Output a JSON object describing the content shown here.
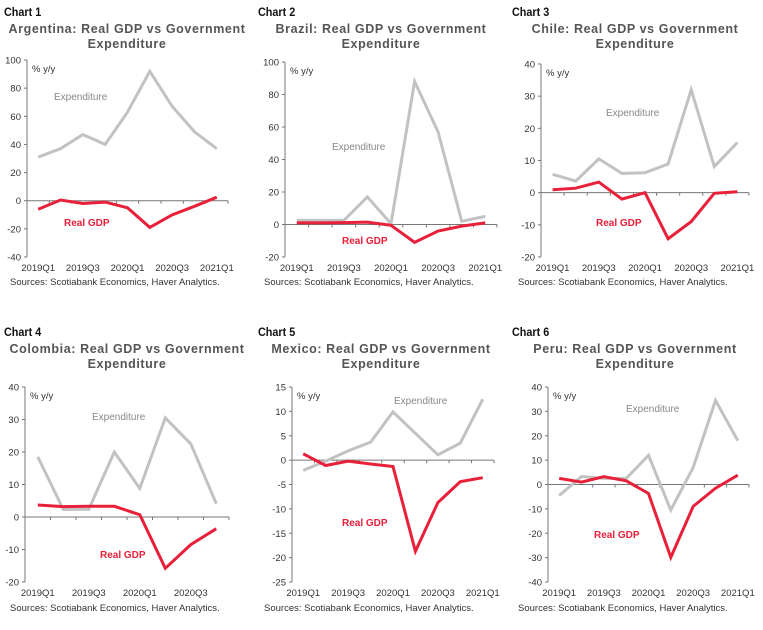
{
  "colors": {
    "gdp": "#e8203a",
    "expenditure": "#c2c2c2",
    "title": "#555555",
    "axis": "#777777"
  },
  "chart_data": [
    {
      "type": "line",
      "chart_label": "Chart 1",
      "title": "Argentina: Real GDP vs Government Expenditure",
      "ylabel": "% y/y",
      "ylim": [
        -40,
        100
      ],
      "yticks": [
        100,
        80,
        60,
        40,
        20,
        0,
        -20,
        -40
      ],
      "categories": [
        "2019Q1",
        "2019Q2",
        "2019Q3",
        "2019Q4",
        "2020Q1",
        "2020Q2",
        "2020Q3",
        "2020Q4",
        "2021Q1"
      ],
      "xtick_labels": [
        "2019Q1",
        "2019Q3",
        "2020Q1",
        "2020Q3",
        "2021Q1"
      ],
      "series": [
        {
          "name": "Expenditure",
          "values": [
            31,
            37,
            47,
            40,
            63,
            92,
            67,
            49,
            37
          ]
        },
        {
          "name": "Real GDP",
          "values": [
            -6,
            0.5,
            -2,
            -1,
            -5,
            -19,
            -10,
            -4,
            2.5
          ]
        }
      ],
      "annotations": [
        {
          "text": "Expenditure",
          "series": "Expenditure"
        },
        {
          "text": "Real GDP",
          "series": "Real GDP"
        }
      ],
      "source": "Sources: Scotiabank Economics, Haver Analytics."
    },
    {
      "type": "line",
      "chart_label": "Chart 2",
      "title": "Brazil: Real GDP vs Government Expenditure",
      "ylabel": "% y/y",
      "ylim": [
        -20,
        100
      ],
      "yticks": [
        100,
        80,
        60,
        40,
        20,
        0,
        -20
      ],
      "categories": [
        "2019Q1",
        "2019Q2",
        "2019Q3",
        "2019Q4",
        "2020Q1",
        "2020Q2",
        "2020Q3",
        "2020Q4",
        "2021Q1"
      ],
      "xtick_labels": [
        "2019Q1",
        "2019Q3",
        "2020Q1",
        "2020Q3",
        "2021Q1"
      ],
      "series": [
        {
          "name": "Expenditure",
          "values": [
            2.5,
            2.5,
            2.5,
            17,
            0.5,
            88,
            57,
            2,
            5
          ]
        },
        {
          "name": "Real GDP",
          "values": [
            1,
            1,
            1.2,
            1.5,
            -0.5,
            -11,
            -4,
            -1,
            1
          ]
        }
      ],
      "annotations": [
        {
          "text": "Expenditure",
          "series": "Expenditure"
        },
        {
          "text": "Real GDP",
          "series": "Real GDP"
        }
      ],
      "source": "Sources: Scotiabank Economics, Haver Analytics."
    },
    {
      "type": "line",
      "chart_label": "Chart 3",
      "title": "Chile: Real GDP vs Government Expenditure",
      "ylabel": "% y/y",
      "ylim": [
        -20,
        40
      ],
      "yticks": [
        40,
        30,
        20,
        10,
        0,
        -10,
        -20
      ],
      "categories": [
        "2019Q1",
        "2019Q2",
        "2019Q3",
        "2019Q4",
        "2020Q1",
        "2020Q2",
        "2020Q3",
        "2020Q4",
        "2021Q1"
      ],
      "xtick_labels": [
        "2019Q1",
        "2019Q3",
        "2020Q1",
        "2020Q3",
        "2021Q1"
      ],
      "series": [
        {
          "name": "Expenditure",
          "values": [
            5.7,
            3.6,
            10.5,
            6,
            6.2,
            8.9,
            32,
            8.1,
            15.6
          ]
        },
        {
          "name": "Real GDP",
          "values": [
            0.9,
            1.4,
            3.3,
            -2,
            0,
            -14.3,
            -9,
            -0.2,
            0.3
          ]
        }
      ],
      "annotations": [
        {
          "text": "Expenditure",
          "series": "Expenditure"
        },
        {
          "text": "Real GDP",
          "series": "Real GDP"
        }
      ],
      "source": "Sources: Scotiabank Economics, Haver Analytics."
    },
    {
      "type": "line",
      "chart_label": "Chart 4",
      "title": "Colombia: Real GDP vs Government Expenditure",
      "ylabel": "% y/y",
      "ylim": [
        -20,
        40
      ],
      "yticks": [
        40,
        30,
        20,
        10,
        0,
        -10,
        -20
      ],
      "categories": [
        "2019Q1",
        "2019Q2",
        "2019Q3",
        "2019Q4",
        "2020Q1",
        "2020Q2",
        "2020Q3",
        "2020Q4"
      ],
      "xtick_labels": [
        "2019Q1",
        "2019Q3",
        "2020Q1",
        "2020Q3"
      ],
      "series": [
        {
          "name": "Expenditure",
          "values": [
            18.5,
            2.3,
            2.4,
            20,
            8.8,
            30.5,
            22.5,
            4.1
          ]
        },
        {
          "name": "Real GDP",
          "values": [
            3.7,
            3.2,
            3.3,
            3.3,
            0.7,
            -15.8,
            -8.5,
            -3.6
          ]
        }
      ],
      "annotations": [
        {
          "text": "Expenditure",
          "series": "Expenditure"
        },
        {
          "text": "Real GDP",
          "series": "Real GDP"
        }
      ],
      "source": "Sources: Scotiabank Economics, Haver Analytics."
    },
    {
      "type": "line",
      "chart_label": "Chart 5",
      "title": "Mexico: Real GDP vs Government Expenditure",
      "ylabel": "% y/y",
      "ylim": [
        -25,
        15
      ],
      "yticks": [
        15,
        10,
        5,
        0,
        -5,
        -10,
        -15,
        -20,
        -25
      ],
      "categories": [
        "2019Q1",
        "2019Q2",
        "2019Q3",
        "2019Q4",
        "2020Q1",
        "2020Q2",
        "2020Q3",
        "2020Q4",
        "2021Q1"
      ],
      "xtick_labels": [
        "2019Q1",
        "2019Q3",
        "2020Q1",
        "2020Q3",
        "2021Q1"
      ],
      "series": [
        {
          "name": "Expenditure",
          "values": [
            -2.1,
            -0.2,
            1.9,
            3.7,
            9.9,
            5.5,
            1.1,
            3.5,
            12.5
          ]
        },
        {
          "name": "Real GDP",
          "values": [
            1.3,
            -1.1,
            -0.2,
            -0.8,
            -1.3,
            -18.7,
            -8.7,
            -4.4,
            -3.6
          ]
        }
      ],
      "annotations": [
        {
          "text": "Expenditure",
          "series": "Expenditure"
        },
        {
          "text": "Real GDP",
          "series": "Real GDP"
        }
      ],
      "source": "Sources: Scotiabank Economics, Haver Analytics."
    },
    {
      "type": "line",
      "chart_label": "Chart 6",
      "title": "Peru: Real GDP vs Government Expenditure",
      "ylabel": "% y/y",
      "ylim": [
        -40,
        40
      ],
      "yticks": [
        40,
        30,
        20,
        10,
        0,
        -10,
        -20,
        -30,
        -40
      ],
      "categories": [
        "2019Q1",
        "2019Q2",
        "2019Q3",
        "2019Q4",
        "2020Q1",
        "2020Q2",
        "2020Q3",
        "2020Q4",
        "2021Q1"
      ],
      "xtick_labels": [
        "2019Q1",
        "2019Q3",
        "2020Q1",
        "2020Q3",
        "2021Q1"
      ],
      "series": [
        {
          "name": "Expenditure",
          "values": [
            -4.5,
            3.3,
            2.5,
            2.5,
            12,
            -10.5,
            7,
            34.5,
            18
          ]
        },
        {
          "name": "Real GDP",
          "values": [
            2.5,
            1,
            3.2,
            1.5,
            -3.7,
            -29.9,
            -9,
            -1.5,
            3.8
          ]
        }
      ],
      "annotations": [
        {
          "text": "Expenditure",
          "series": "Expenditure"
        },
        {
          "text": "Real GDP",
          "series": "Real GDP"
        }
      ],
      "source": "Sources: Scotiabank Economics, Haver Analytics."
    }
  ]
}
